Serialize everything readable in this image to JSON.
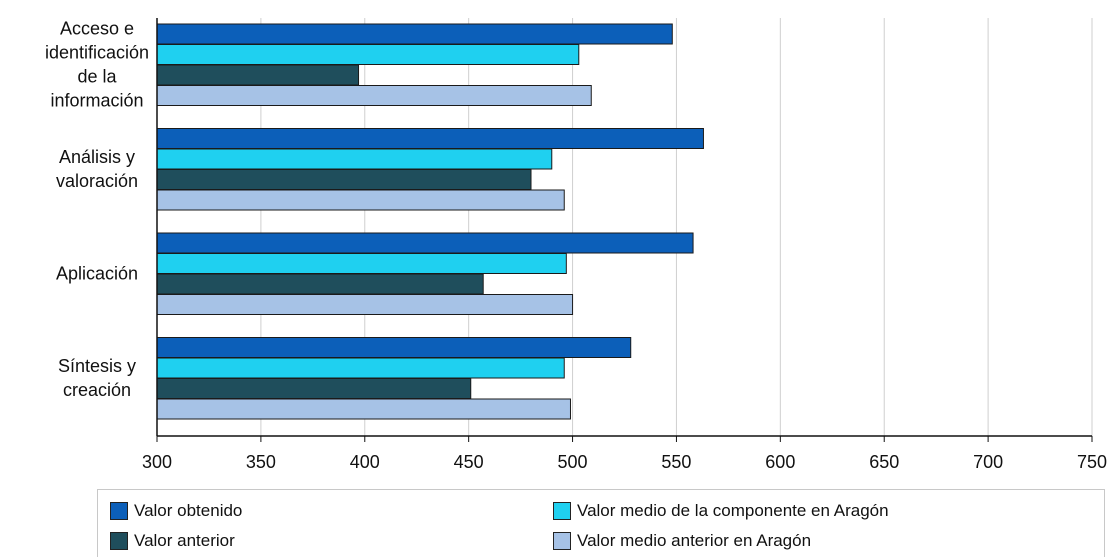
{
  "chart_data": {
    "type": "bar",
    "orientation": "horizontal",
    "categories": [
      "Acceso e identificación de la información",
      "Análisis y valoración",
      "Aplicación",
      "Síntesis y creación"
    ],
    "category_lines": [
      [
        "Acceso e",
        "identificación",
        "de la",
        "información"
      ],
      [
        "Análisis y",
        "valoración"
      ],
      [
        "Aplicación"
      ],
      [
        "Síntesis y",
        "creación"
      ]
    ],
    "series": [
      {
        "name": "Valor obtenido",
        "color": "#0c5fb9",
        "values": [
          548,
          563,
          558,
          528
        ]
      },
      {
        "name": "Valor medio de la componente en Aragón",
        "color": "#1fd0f0",
        "values": [
          503,
          490,
          497,
          496
        ]
      },
      {
        "name": "Valor anterior",
        "color": "#1f4e5c",
        "values": [
          397,
          480,
          457,
          451
        ]
      },
      {
        "name": "Valor medio anterior en Aragón",
        "color": "#a6c2e6",
        "values": [
          509,
          496,
          500,
          499
        ]
      }
    ],
    "xlim": [
      300,
      750
    ],
    "xticks": [
      "300",
      "350",
      "400",
      "450",
      "500",
      "550",
      "600",
      "650",
      "700",
      "750"
    ],
    "grid": true,
    "legend_position": "bottom",
    "title": "",
    "xlabel": "",
    "ylabel": ""
  }
}
